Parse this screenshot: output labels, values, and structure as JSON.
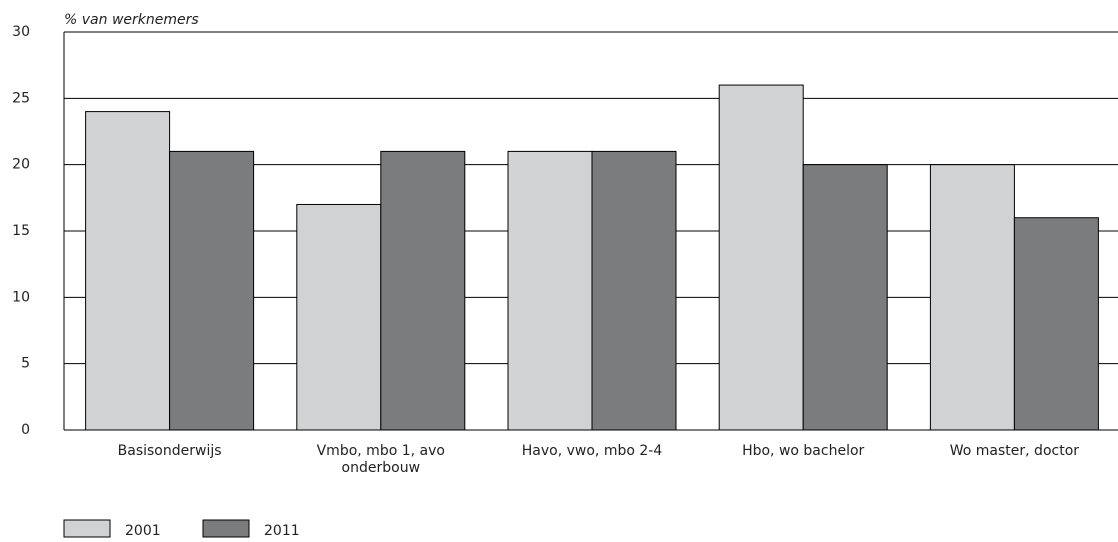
{
  "chart_data": {
    "type": "bar",
    "y_label": "% van werknemers",
    "categories": [
      "Basisonderwijs",
      "Vmbo, mbo 1, avo onderbouw",
      "Havo, vwo, mbo 2-4",
      "Hbo, wo bachelor",
      "Wo master, doctor"
    ],
    "series": [
      {
        "name": "2001",
        "color": "#d1d2d4",
        "values": [
          24,
          17,
          21,
          26,
          20
        ]
      },
      {
        "name": "2011",
        "color": "#7b7c7e",
        "values": [
          21,
          21,
          21,
          20,
          16
        ]
      }
    ],
    "ylim": [
      0,
      30
    ],
    "yticks": [
      0,
      5,
      10,
      15,
      20,
      25,
      30
    ],
    "grid": true
  }
}
